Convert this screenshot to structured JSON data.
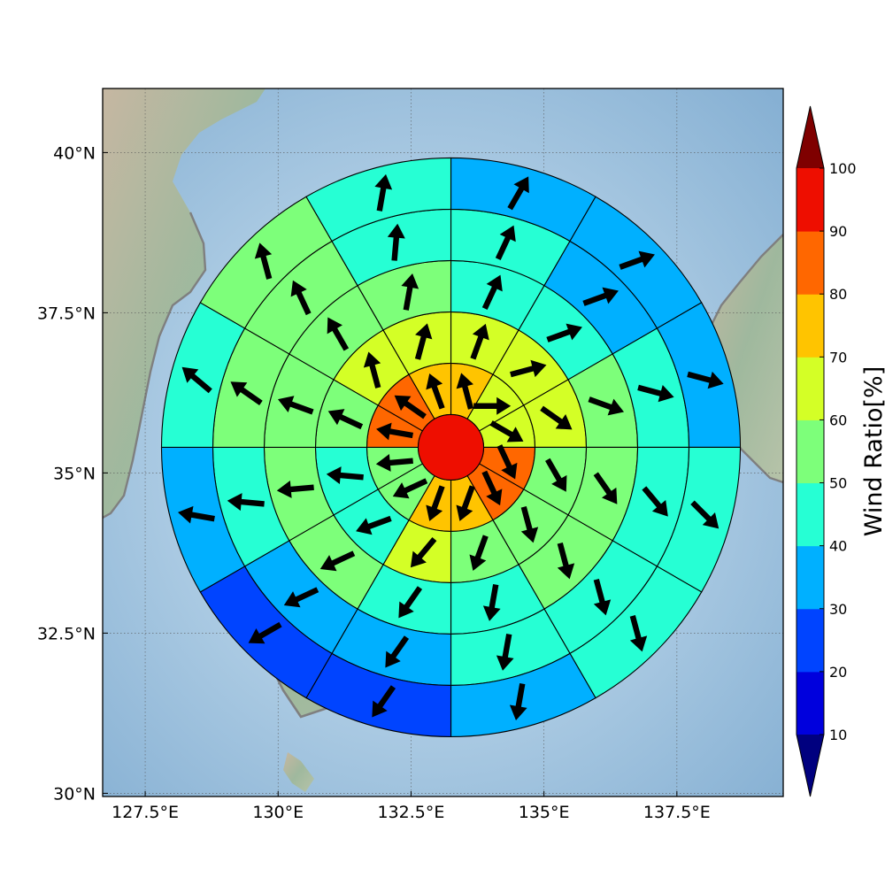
{
  "chart_data": {
    "type": "heatmap",
    "title": "",
    "subtitle": "",
    "xlabel": "",
    "ylabel": "",
    "description_type": "polar-sector wind-ratio map with wind-direction arrows",
    "center": {
      "lon": 133.25,
      "lat": 35.4
    },
    "xlim": [
      126.7,
      139.5
    ],
    "ylim": [
      29.95,
      41.0
    ],
    "x_ticks": [
      127.5,
      130,
      132.5,
      135,
      137.5
    ],
    "x_tick_labels": [
      "127.5°E",
      "130°E",
      "132.5°E",
      "135°E",
      "137.5°E"
    ],
    "y_ticks": [
      30,
      32.5,
      35,
      37.5,
      40
    ],
    "y_tick_labels": [
      "30°N",
      "32.5°N",
      "35°N",
      "37.5°N",
      "40°N"
    ],
    "grid": true,
    "colorbar": {
      "label": "Wind Ratio[%]",
      "levels": [
        10,
        20,
        30,
        40,
        50,
        60,
        70,
        80,
        90,
        100
      ],
      "tick_labels": [
        "10",
        "20",
        "30",
        "40",
        "50",
        "60",
        "70",
        "80",
        "90",
        "100"
      ],
      "colors": [
        "#00007f",
        "#0000dd",
        "#0044ff",
        "#00b0ff",
        "#26ffd4",
        "#7dff7a",
        "#d4ff26",
        "#ffc400",
        "#ff6700",
        "#ee0e00",
        "#7f0000"
      ],
      "extend": "both"
    },
    "center_value": 95,
    "rings": [
      {
        "values": [
          75,
          65,
          65,
          85,
          85,
          75,
          75,
          55,
          55,
          85,
          85,
          75
        ],
        "arrow_dirs": [
          -15,
          90,
          120,
          155,
          155,
          200,
          200,
          245,
          265,
          280,
          305,
          340
        ]
      },
      {
        "values": [
          65,
          65,
          65,
          55,
          55,
          55,
          65,
          45,
          45,
          55,
          65,
          65
        ],
        "arrow_dirs": [
          20,
          75,
          125,
          150,
          165,
          200,
          220,
          250,
          275,
          295,
          345,
          15
        ]
      },
      {
        "values": [
          45,
          45,
          55,
          55,
          55,
          45,
          45,
          55,
          55,
          55,
          55,
          55
        ],
        "arrow_dirs": [
          25,
          70,
          110,
          145,
          165,
          190,
          215,
          245,
          265,
          290,
          330,
          10
        ]
      },
      {
        "values": [
          45,
          35,
          45,
          45,
          45,
          45,
          35,
          35,
          45,
          55,
          55,
          45
        ],
        "arrow_dirs": [
          25,
          70,
          105,
          140,
          165,
          190,
          215,
          245,
          275,
          305,
          335,
          5
        ]
      },
      {
        "values": [
          35,
          35,
          35,
          45,
          45,
          35,
          25,
          25,
          35,
          45,
          55,
          45
        ],
        "arrow_dirs": [
          30,
          70,
          105,
          135,
          165,
          190,
          215,
          240,
          280,
          310,
          345,
          10
        ]
      }
    ]
  }
}
